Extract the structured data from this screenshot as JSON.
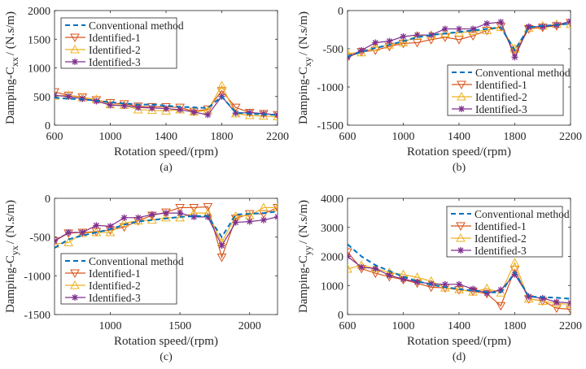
{
  "colors": {
    "conventional": "#0072BD",
    "identified1": "#D95319",
    "identified2": "#EDB120",
    "identified3": "#7E2F8E"
  },
  "chart_data": [
    {
      "type": "line",
      "panel_label": "(a)",
      "ylabel_main": "Damping-C",
      "ylabel_sub": "xx",
      "ylabel_unit": "/ (N.s/m)",
      "xlabel": "Rotation speed/(rpm)",
      "xlim": [
        600,
        2200
      ],
      "ylim": [
        0,
        2000
      ],
      "xticks": [
        600,
        1000,
        1400,
        1800,
        2200
      ],
      "yticks": [
        0,
        500,
        1000,
        1500,
        2000
      ],
      "legend_position": "top-left",
      "x": [
        600,
        700,
        800,
        900,
        1000,
        1100,
        1200,
        1300,
        1400,
        1500,
        1600,
        1700,
        1800,
        1900,
        2000,
        2100,
        2200
      ],
      "series": [
        {
          "name": "Conventional method",
          "values": [
            480,
            460,
            450,
            430,
            400,
            380,
            360,
            360,
            340,
            320,
            310,
            300,
            500,
            220,
            200,
            190,
            180
          ]
        },
        {
          "name": "Identified-1",
          "values": [
            580,
            520,
            490,
            440,
            390,
            370,
            330,
            320,
            320,
            310,
            240,
            280,
            600,
            310,
            220,
            200,
            180
          ]
        },
        {
          "name": "Identified-2",
          "values": [
            510,
            520,
            480,
            450,
            360,
            350,
            270,
            260,
            250,
            270,
            230,
            260,
            690,
            200,
            170,
            160,
            150
          ]
        },
        {
          "name": "Identified-3",
          "values": [
            520,
            500,
            460,
            420,
            350,
            340,
            310,
            300,
            290,
            270,
            230,
            180,
            500,
            210,
            220,
            200,
            180
          ]
        }
      ]
    },
    {
      "type": "line",
      "panel_label": "(b)",
      "ylabel_main": "Damping-C",
      "ylabel_sub": "xy",
      "ylabel_unit": "/ (N.s/m)",
      "xlabel": "Rotation speed/(rpm)",
      "xlim": [
        600,
        2200
      ],
      "ylim": [
        -1500,
        0
      ],
      "xticks": [
        600,
        1000,
        1400,
        1800,
        2200
      ],
      "yticks": [
        -1500,
        -1000,
        -500,
        0
      ],
      "legend_position": "bottom-right",
      "x": [
        600,
        700,
        800,
        900,
        1000,
        1100,
        1200,
        1300,
        1400,
        1500,
        1600,
        1700,
        1800,
        1900,
        2000,
        2100,
        2200
      ],
      "series": [
        {
          "name": "Conventional method",
          "values": [
            -600,
            -540,
            -490,
            -450,
            -400,
            -350,
            -320,
            -300,
            -280,
            -260,
            -240,
            -220,
            -520,
            -220,
            -200,
            -190,
            -170
          ]
        },
        {
          "name": "Identified-1",
          "values": [
            -610,
            -540,
            -520,
            -470,
            -430,
            -420,
            -380,
            -350,
            -380,
            -330,
            -260,
            -210,
            -560,
            -240,
            -220,
            -200,
            -160
          ]
        },
        {
          "name": "Identified-2",
          "values": [
            -560,
            -550,
            -480,
            -450,
            -420,
            -330,
            -320,
            -300,
            -290,
            -270,
            -260,
            -220,
            -500,
            -230,
            -200,
            -180,
            -180
          ]
        },
        {
          "name": "Identified-3",
          "values": [
            -610,
            -520,
            -420,
            -400,
            -340,
            -320,
            -320,
            -240,
            -240,
            -240,
            -170,
            -150,
            -610,
            -210,
            -210,
            -190,
            -140
          ]
        }
      ]
    },
    {
      "type": "line",
      "panel_label": "(c)",
      "ylabel_main": "Damping-C",
      "ylabel_sub": "yx",
      "ylabel_unit": "/ (N.s/m)",
      "xlabel": "Rotation speed/(rpm)",
      "xlim": [
        600,
        2200
      ],
      "ylim": [
        -1500,
        0
      ],
      "xticks": [
        1000,
        1500,
        2000
      ],
      "yticks": [
        -1500,
        -1000,
        -500,
        0
      ],
      "legend_position": "bottom-left",
      "x": [
        600,
        700,
        800,
        900,
        1000,
        1100,
        1200,
        1300,
        1400,
        1500,
        1600,
        1700,
        1800,
        1900,
        2000,
        2100,
        2200
      ],
      "series": [
        {
          "name": "Conventional method",
          "values": [
            -640,
            -530,
            -480,
            -440,
            -400,
            -340,
            -300,
            -280,
            -260,
            -240,
            -230,
            -230,
            -500,
            -210,
            -200,
            -190,
            -170
          ]
        },
        {
          "name": "Identified-1",
          "values": [
            -550,
            -450,
            -440,
            -430,
            -410,
            -370,
            -290,
            -220,
            -180,
            -120,
            -120,
            -110,
            -760,
            -260,
            -200,
            -200,
            -120
          ]
        },
        {
          "name": "Identified-2",
          "values": [
            -590,
            -570,
            -450,
            -440,
            -440,
            -320,
            -290,
            -280,
            -250,
            -250,
            -190,
            -190,
            -570,
            -230,
            -220,
            -120,
            -120
          ]
        },
        {
          "name": "Identified-3",
          "values": [
            -550,
            -440,
            -440,
            -350,
            -360,
            -250,
            -250,
            -210,
            -190,
            -190,
            -240,
            -240,
            -610,
            -310,
            -300,
            -280,
            -240
          ]
        }
      ]
    },
    {
      "type": "line",
      "panel_label": "(d)",
      "ylabel_main": "Damping-C",
      "ylabel_sub": "yy",
      "ylabel_unit": "/ (N.s/m)",
      "xlabel": "Rotation speed/(rpm)",
      "xlim": [
        600,
        2200
      ],
      "ylim": [
        0,
        4000
      ],
      "xticks": [
        600,
        1000,
        1400,
        1800,
        2200
      ],
      "yticks": [
        0,
        1000,
        2000,
        3000,
        4000
      ],
      "legend_position": "top-right",
      "x": [
        600,
        700,
        800,
        900,
        1000,
        1100,
        1200,
        1300,
        1400,
        1500,
        1600,
        1700,
        1800,
        1900,
        2000,
        2100,
        2200
      ],
      "series": [
        {
          "name": "Conventional method",
          "values": [
            2420,
            2000,
            1700,
            1500,
            1300,
            1150,
            1030,
            940,
            880,
            820,
            770,
            760,
            1450,
            620,
            600,
            580,
            540
          ]
        },
        {
          "name": "Identified-1",
          "values": [
            2150,
            1580,
            1420,
            1300,
            1200,
            1080,
            940,
            920,
            850,
            800,
            720,
            300,
            1550,
            540,
            470,
            220,
            180
          ]
        },
        {
          "name": "Identified-2",
          "values": [
            1570,
            1700,
            1580,
            1450,
            1380,
            1280,
            1150,
            920,
            860,
            780,
            900,
            750,
            1780,
            540,
            460,
            380,
            350
          ]
        },
        {
          "name": "Identified-3",
          "values": [
            2000,
            1630,
            1580,
            1350,
            1220,
            1120,
            1060,
            1040,
            1040,
            880,
            740,
            850,
            1380,
            620,
            560,
            430,
            400
          ]
        }
      ]
    }
  ]
}
